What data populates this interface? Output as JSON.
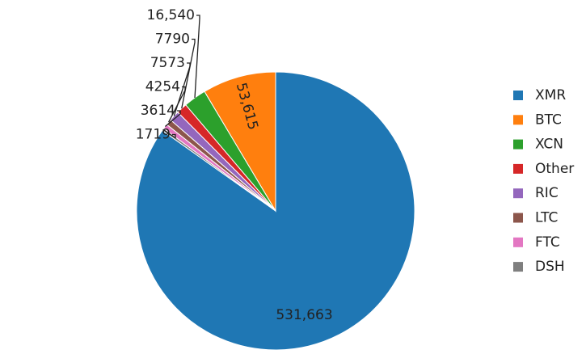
{
  "chart_data": {
    "type": "pie",
    "categories": [
      "XMR",
      "BTC",
      "XCN",
      "Other",
      "RIC",
      "LTC",
      "FTC",
      "DSH"
    ],
    "values": [
      531663,
      53615,
      16540,
      7790,
      7573,
      4254,
      3614,
      1719
    ],
    "value_labels": [
      "531,663",
      "53,615",
      "16,540",
      "7790",
      "7573",
      "4254",
      "3614",
      "1719"
    ],
    "colors": [
      "#1f77b4",
      "#ff7f0e",
      "#2ca02c",
      "#d62728",
      "#9467bd",
      "#8c564b",
      "#e377c2",
      "#7f7f7f"
    ],
    "legend": "right"
  }
}
